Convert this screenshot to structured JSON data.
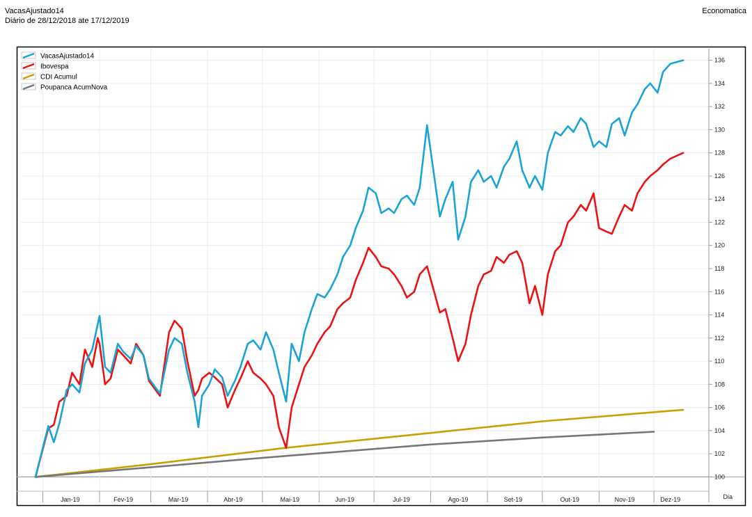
{
  "header": {
    "title": "VacasAjustado14",
    "subtitle": "Diário de 28/12/2018 ate 17/12/2019",
    "brand": "Economatica"
  },
  "colors": {
    "VacasAjustado14": "#1aa3d6",
    "Ibovespa": "#ee1111",
    "CDI Acumul": "#c8a000",
    "Poupanca AcumNova": "#777777"
  },
  "chart_data": {
    "type": "line",
    "title": "",
    "xlabel": "Dia",
    "ylabel": "",
    "ylim": [
      99,
      137
    ],
    "yticks": [
      100,
      102,
      104,
      106,
      108,
      110,
      112,
      114,
      116,
      118,
      120,
      122,
      124,
      126,
      128,
      130,
      132,
      134,
      136
    ],
    "month_ticks": [
      "Jan-19",
      "Fev-19",
      "Mar-19",
      "Abr-19",
      "Mai-19",
      "Jun-19",
      "Jul-19",
      "Ago-19",
      "Set-19",
      "Out-19",
      "Nov-19",
      "Dez-19"
    ],
    "xlim": [
      "2018-12-20",
      "2019-12-31"
    ],
    "month_boundaries": [
      "2019-01-01",
      "2019-02-01",
      "2019-03-01",
      "2019-04-01",
      "2019-05-01",
      "2019-06-01",
      "2019-07-01",
      "2019-08-01",
      "2019-09-01",
      "2019-10-01",
      "2019-11-01",
      "2019-12-01"
    ],
    "month_centers": [
      "2019-01-16",
      "2019-02-14",
      "2019-03-16",
      "2019-04-15",
      "2019-05-16",
      "2019-06-15",
      "2019-07-16",
      "2019-08-16",
      "2019-09-15",
      "2019-10-16",
      "2019-11-15",
      "2019-12-10"
    ],
    "grid": true,
    "legend": "top-left",
    "series": [
      {
        "name": "VacasAjustado14",
        "points": [
          [
            "2018-12-28",
            100.0
          ],
          [
            "2019-01-04",
            104.4
          ],
          [
            "2019-01-07",
            103.0
          ],
          [
            "2019-01-10",
            104.6
          ],
          [
            "2019-01-14",
            107.5
          ],
          [
            "2019-01-17",
            108.0
          ],
          [
            "2019-01-21",
            107.3
          ],
          [
            "2019-01-24",
            109.8
          ],
          [
            "2019-01-28",
            111.0
          ],
          [
            "2019-01-31",
            113.2
          ],
          [
            "2019-02-01",
            113.9
          ],
          [
            "2019-02-04",
            109.5
          ],
          [
            "2019-02-07",
            109.0
          ],
          [
            "2019-02-11",
            111.5
          ],
          [
            "2019-02-14",
            110.8
          ],
          [
            "2019-02-18",
            110.2
          ],
          [
            "2019-02-21",
            111.3
          ],
          [
            "2019-02-25",
            110.5
          ],
          [
            "2019-02-28",
            108.5
          ],
          [
            "2019-03-06",
            107.2
          ],
          [
            "2019-03-11",
            111.0
          ],
          [
            "2019-03-14",
            112.0
          ],
          [
            "2019-03-18",
            111.5
          ],
          [
            "2019-03-21",
            109.0
          ],
          [
            "2019-03-25",
            106.5
          ],
          [
            "2019-03-27",
            104.3
          ],
          [
            "2019-03-29",
            107.0
          ],
          [
            "2019-04-02",
            108.0
          ],
          [
            "2019-04-05",
            109.3
          ],
          [
            "2019-04-09",
            108.6
          ],
          [
            "2019-04-12",
            107.0
          ],
          [
            "2019-04-16",
            108.3
          ],
          [
            "2019-04-19",
            109.5
          ],
          [
            "2019-04-23",
            111.5
          ],
          [
            "2019-04-26",
            111.8
          ],
          [
            "2019-04-30",
            111.0
          ],
          [
            "2019-05-03",
            112.5
          ],
          [
            "2019-05-07",
            111.0
          ],
          [
            "2019-05-10",
            109.0
          ],
          [
            "2019-05-14",
            106.5
          ],
          [
            "2019-05-17",
            111.5
          ],
          [
            "2019-05-21",
            110.0
          ],
          [
            "2019-05-24",
            112.5
          ],
          [
            "2019-05-28",
            114.5
          ],
          [
            "2019-05-31",
            115.8
          ],
          [
            "2019-06-04",
            115.5
          ],
          [
            "2019-06-07",
            116.2
          ],
          [
            "2019-06-11",
            117.5
          ],
          [
            "2019-06-14",
            119.0
          ],
          [
            "2019-06-18",
            120.0
          ],
          [
            "2019-06-21",
            121.5
          ],
          [
            "2019-06-25",
            123.0
          ],
          [
            "2019-06-28",
            125.0
          ],
          [
            "2019-07-02",
            124.5
          ],
          [
            "2019-07-05",
            122.8
          ],
          [
            "2019-07-09",
            123.2
          ],
          [
            "2019-07-12",
            122.8
          ],
          [
            "2019-07-16",
            124.0
          ],
          [
            "2019-07-19",
            124.3
          ],
          [
            "2019-07-23",
            123.5
          ],
          [
            "2019-07-26",
            125.0
          ],
          [
            "2019-07-30",
            130.4
          ],
          [
            "2019-08-02",
            127.0
          ],
          [
            "2019-08-06",
            122.5
          ],
          [
            "2019-08-09",
            124.0
          ],
          [
            "2019-08-13",
            125.5
          ],
          [
            "2019-08-16",
            120.5
          ],
          [
            "2019-08-20",
            122.5
          ],
          [
            "2019-08-23",
            125.5
          ],
          [
            "2019-08-27",
            126.5
          ],
          [
            "2019-08-30",
            125.5
          ],
          [
            "2019-09-03",
            126.0
          ],
          [
            "2019-09-06",
            125.0
          ],
          [
            "2019-09-10",
            126.8
          ],
          [
            "2019-09-13",
            127.5
          ],
          [
            "2019-09-17",
            129.0
          ],
          [
            "2019-09-20",
            126.5
          ],
          [
            "2019-09-24",
            125.0
          ],
          [
            "2019-09-27",
            126.0
          ],
          [
            "2019-10-01",
            124.8
          ],
          [
            "2019-10-04",
            128.0
          ],
          [
            "2019-10-08",
            129.8
          ],
          [
            "2019-10-11",
            129.5
          ],
          [
            "2019-10-15",
            130.3
          ],
          [
            "2019-10-18",
            129.8
          ],
          [
            "2019-10-22",
            131.0
          ],
          [
            "2019-10-25",
            130.5
          ],
          [
            "2019-10-29",
            128.5
          ],
          [
            "2019-11-01",
            129.0
          ],
          [
            "2019-11-05",
            128.5
          ],
          [
            "2019-11-08",
            130.5
          ],
          [
            "2019-11-12",
            131.0
          ],
          [
            "2019-11-15",
            129.5
          ],
          [
            "2019-11-19",
            131.5
          ],
          [
            "2019-11-22",
            132.2
          ],
          [
            "2019-11-26",
            133.5
          ],
          [
            "2019-11-29",
            134.0
          ],
          [
            "2019-12-03",
            133.2
          ],
          [
            "2019-12-06",
            135.0
          ],
          [
            "2019-12-10",
            135.7
          ],
          [
            "2019-12-17",
            136.0
          ]
        ]
      },
      {
        "name": "Ibovespa",
        "points": [
          [
            "2018-12-28",
            100.0
          ],
          [
            "2019-01-04",
            104.2
          ],
          [
            "2019-01-07",
            104.5
          ],
          [
            "2019-01-10",
            106.5
          ],
          [
            "2019-01-14",
            107.0
          ],
          [
            "2019-01-17",
            109.0
          ],
          [
            "2019-01-21",
            108.0
          ],
          [
            "2019-01-24",
            111.0
          ],
          [
            "2019-01-28",
            109.5
          ],
          [
            "2019-01-31",
            112.0
          ],
          [
            "2019-02-01",
            111.5
          ],
          [
            "2019-02-04",
            108.0
          ],
          [
            "2019-02-07",
            108.5
          ],
          [
            "2019-02-11",
            111.0
          ],
          [
            "2019-02-14",
            110.5
          ],
          [
            "2019-02-18",
            109.8
          ],
          [
            "2019-02-21",
            111.5
          ],
          [
            "2019-02-25",
            110.5
          ],
          [
            "2019-02-28",
            108.3
          ],
          [
            "2019-03-06",
            107.0
          ],
          [
            "2019-03-11",
            112.5
          ],
          [
            "2019-03-14",
            113.5
          ],
          [
            "2019-03-18",
            112.8
          ],
          [
            "2019-03-21",
            110.0
          ],
          [
            "2019-03-25",
            107.0
          ],
          [
            "2019-03-27",
            107.5
          ],
          [
            "2019-03-29",
            108.5
          ],
          [
            "2019-04-02",
            109.0
          ],
          [
            "2019-04-05",
            108.6
          ],
          [
            "2019-04-09",
            108.0
          ],
          [
            "2019-04-12",
            106.0
          ],
          [
            "2019-04-16",
            107.5
          ],
          [
            "2019-04-19",
            108.5
          ],
          [
            "2019-04-23",
            110.0
          ],
          [
            "2019-04-26",
            109.0
          ],
          [
            "2019-04-30",
            108.5
          ],
          [
            "2019-05-03",
            108.0
          ],
          [
            "2019-05-07",
            107.0
          ],
          [
            "2019-05-10",
            104.3
          ],
          [
            "2019-05-14",
            102.5
          ],
          [
            "2019-05-17",
            106.0
          ],
          [
            "2019-05-21",
            108.0
          ],
          [
            "2019-05-24",
            109.5
          ],
          [
            "2019-05-28",
            110.5
          ],
          [
            "2019-05-31",
            111.5
          ],
          [
            "2019-06-04",
            112.5
          ],
          [
            "2019-06-07",
            113.0
          ],
          [
            "2019-06-11",
            114.5
          ],
          [
            "2019-06-14",
            115.0
          ],
          [
            "2019-06-18",
            115.5
          ],
          [
            "2019-06-21",
            117.0
          ],
          [
            "2019-06-25",
            118.5
          ],
          [
            "2019-06-28",
            119.8
          ],
          [
            "2019-07-02",
            119.0
          ],
          [
            "2019-07-05",
            118.2
          ],
          [
            "2019-07-09",
            118.0
          ],
          [
            "2019-07-12",
            117.5
          ],
          [
            "2019-07-16",
            116.5
          ],
          [
            "2019-07-19",
            115.5
          ],
          [
            "2019-07-23",
            116.0
          ],
          [
            "2019-07-26",
            117.5
          ],
          [
            "2019-07-30",
            118.2
          ],
          [
            "2019-08-02",
            116.5
          ],
          [
            "2019-08-06",
            114.2
          ],
          [
            "2019-08-09",
            114.5
          ],
          [
            "2019-08-13",
            112.0
          ],
          [
            "2019-08-16",
            110.0
          ],
          [
            "2019-08-20",
            111.5
          ],
          [
            "2019-08-23",
            114.0
          ],
          [
            "2019-08-27",
            116.5
          ],
          [
            "2019-08-30",
            117.5
          ],
          [
            "2019-09-03",
            117.8
          ],
          [
            "2019-09-06",
            119.0
          ],
          [
            "2019-09-10",
            118.5
          ],
          [
            "2019-09-13",
            119.2
          ],
          [
            "2019-09-17",
            119.5
          ],
          [
            "2019-09-20",
            118.5
          ],
          [
            "2019-09-24",
            115.0
          ],
          [
            "2019-09-27",
            116.5
          ],
          [
            "2019-10-01",
            114.0
          ],
          [
            "2019-10-04",
            117.5
          ],
          [
            "2019-10-08",
            119.5
          ],
          [
            "2019-10-11",
            120.0
          ],
          [
            "2019-10-15",
            122.0
          ],
          [
            "2019-10-18",
            122.5
          ],
          [
            "2019-10-22",
            123.5
          ],
          [
            "2019-10-25",
            123.0
          ],
          [
            "2019-10-29",
            124.5
          ],
          [
            "2019-11-01",
            121.5
          ],
          [
            "2019-11-05",
            121.2
          ],
          [
            "2019-11-08",
            121.0
          ],
          [
            "2019-11-12",
            122.5
          ],
          [
            "2019-11-15",
            123.5
          ],
          [
            "2019-11-19",
            123.0
          ],
          [
            "2019-11-22",
            124.5
          ],
          [
            "2019-11-26",
            125.5
          ],
          [
            "2019-11-29",
            126.0
          ],
          [
            "2019-12-03",
            126.5
          ],
          [
            "2019-12-06",
            127.0
          ],
          [
            "2019-12-10",
            127.5
          ],
          [
            "2019-12-17",
            128.0
          ]
        ]
      },
      {
        "name": "CDI Acumul",
        "points": [
          [
            "2018-12-28",
            100.0
          ],
          [
            "2019-03-01",
            101.1
          ],
          [
            "2019-05-13",
            102.5
          ],
          [
            "2019-08-01",
            103.8
          ],
          [
            "2019-10-01",
            104.8
          ],
          [
            "2019-12-17",
            105.8
          ]
        ]
      },
      {
        "name": "Poupanca AcumNova",
        "points": [
          [
            "2018-12-28",
            100.0
          ],
          [
            "2019-05-13",
            101.8
          ],
          [
            "2019-08-01",
            102.8
          ],
          [
            "2019-10-01",
            103.4
          ],
          [
            "2019-12-01",
            103.9
          ]
        ]
      }
    ]
  }
}
